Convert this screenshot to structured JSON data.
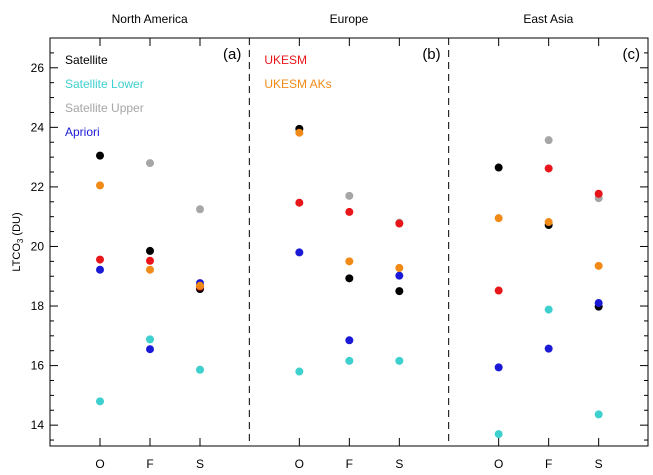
{
  "chart_data": {
    "type": "scatter",
    "panel_titles": [
      "North America",
      "Europe",
      "East Asia"
    ],
    "panel_tags": [
      "(a)",
      "(b)",
      "(c)"
    ],
    "categories": [
      "O",
      "F",
      "S"
    ],
    "ylabel_main": "LTCO",
    "ylabel_sub": "3",
    "ylabel_unit": " (DU)",
    "ylim": [
      13.3,
      27.0
    ],
    "yticks": [
      14,
      16,
      18,
      20,
      22,
      24,
      26
    ],
    "grid": false,
    "legend_placement": "top-left of panels (a) and (b)",
    "series": [
      {
        "name": "Satellite",
        "color": "#000000",
        "values": [
          [
            23.05,
            19.85,
            18.57
          ],
          [
            23.95,
            18.93,
            18.5
          ],
          [
            22.65,
            20.72,
            17.98
          ]
        ]
      },
      {
        "name": "Satellite Lower",
        "color": "#3ecfcf",
        "values": [
          [
            14.8,
            16.88,
            15.86
          ],
          [
            15.8,
            16.16,
            16.16
          ],
          [
            13.7,
            17.88,
            14.36
          ]
        ]
      },
      {
        "name": "Satellite Upper",
        "color": "#a6a6a6",
        "values": [
          [
            null,
            22.8,
            21.25
          ],
          [
            null,
            21.7,
            20.8
          ],
          [
            null,
            23.57,
            21.62
          ]
        ]
      },
      {
        "name": "Apriori",
        "color": "#1a1ad6",
        "values": [
          [
            19.22,
            16.55,
            18.77
          ],
          [
            19.8,
            16.85,
            19.02
          ],
          [
            15.94,
            16.57,
            18.1
          ]
        ]
      },
      {
        "name": "UKESM",
        "color": "#e8151b",
        "values": [
          [
            19.56,
            19.52,
            18.65
          ],
          [
            21.47,
            21.16,
            20.77
          ],
          [
            18.52,
            22.62,
            21.77
          ]
        ]
      },
      {
        "name": "UKESM AKs",
        "color": "#f28a17",
        "values": [
          [
            22.05,
            19.22,
            18.68
          ],
          [
            23.82,
            19.5,
            19.28
          ],
          [
            20.95,
            20.82,
            19.35
          ]
        ]
      }
    ],
    "legend_groups": [
      {
        "panel": 0,
        "entries": [
          0,
          1,
          2,
          3
        ]
      },
      {
        "panel": 1,
        "entries": [
          4,
          5
        ]
      }
    ]
  }
}
